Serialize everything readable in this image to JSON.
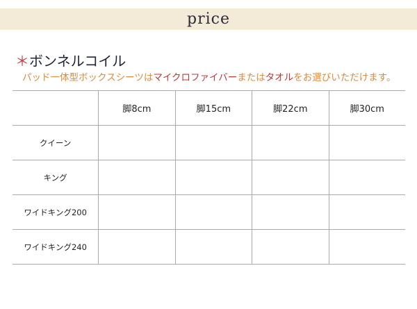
{
  "banner": {
    "title": "price"
  },
  "section": {
    "asterisk": "＊",
    "title": "ボンネルコイル",
    "note_parts": [
      "パッド一体型ボックスシーツは",
      "マイクロファイバー",
      "または",
      "タオル",
      "をお選びいただけます。"
    ]
  },
  "colors": {
    "banner_bg": "#f4ead8",
    "note": "#e08a3a",
    "note_highlight": "#b83a3a",
    "asterisk": "#c0444a"
  },
  "table": {
    "columns": [
      "",
      "脚8cm",
      "脚15cm",
      "脚22cm",
      "脚30cm"
    ],
    "rows": [
      {
        "label": "クイーン",
        "cells": [
          "",
          "",
          "",
          ""
        ]
      },
      {
        "label": "キング",
        "cells": [
          "",
          "",
          "",
          ""
        ]
      },
      {
        "label": "ワイドキング200",
        "cells": [
          "",
          "",
          "",
          ""
        ]
      },
      {
        "label": "ワイドキング240",
        "cells": [
          "",
          "",
          "",
          ""
        ]
      }
    ]
  }
}
